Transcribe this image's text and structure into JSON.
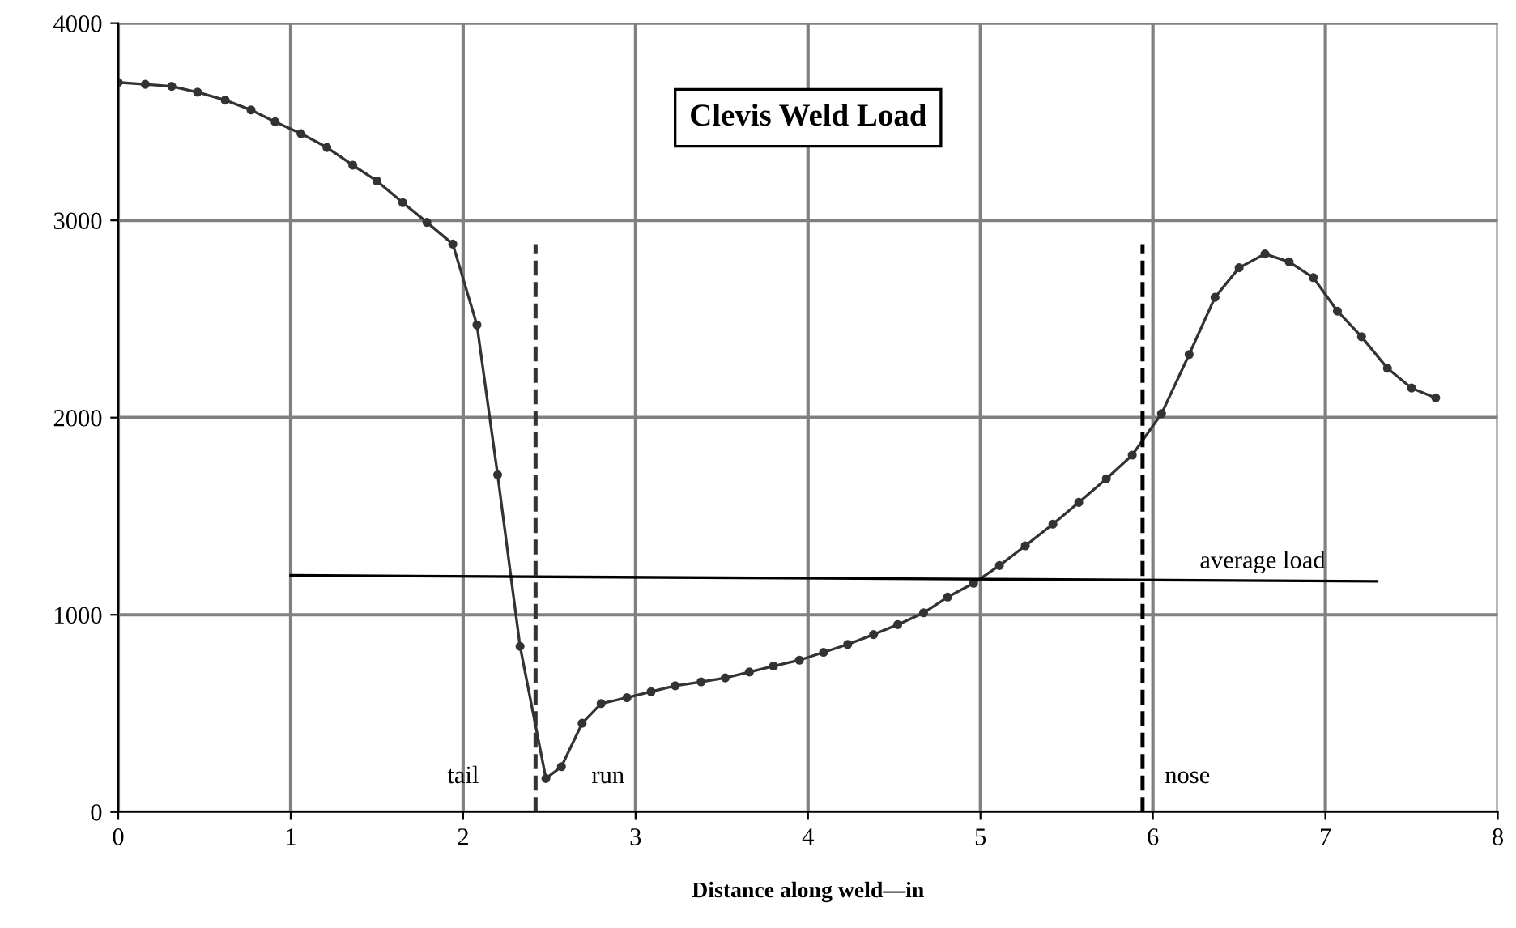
{
  "chart_data": {
    "type": "line",
    "title": "Clevis Weld Load",
    "xlabel": "Distance along weld—in",
    "xlim": [
      0,
      8
    ],
    "xticks": [
      0,
      1,
      2,
      3,
      4,
      5,
      6,
      7,
      8
    ],
    "ylim": [
      0,
      4000
    ],
    "yticks": [
      0,
      1000,
      2000,
      3000,
      4000
    ],
    "grid": true,
    "legend": false,
    "marker": "circle",
    "line_style": "solid",
    "series": [
      {
        "color": "#333333",
        "x": [
          0,
          0.157,
          0.31,
          0.46,
          0.62,
          0.77,
          0.91,
          1.06,
          1.21,
          1.36,
          1.5,
          1.65,
          1.79,
          1.94,
          2.08,
          2.2,
          2.33,
          2.48,
          2.57,
          2.69,
          2.8,
          2.95,
          3.09,
          3.23,
          3.38,
          3.52,
          3.66,
          3.8,
          3.95,
          4.09,
          4.23,
          4.38,
          4.52,
          4.67,
          4.81,
          4.96,
          5.11,
          5.26,
          5.42,
          5.57,
          5.73,
          5.88,
          6.05,
          6.21,
          6.36,
          6.5,
          6.65,
          6.79,
          6.93,
          7.07,
          7.21,
          7.36,
          7.5,
          7.64
        ],
        "values": [
          3700,
          3690,
          3680,
          3650,
          3610,
          3560,
          3500,
          3440,
          3370,
          3280,
          3200,
          3090,
          2990,
          2880,
          2470,
          1710,
          840,
          170,
          230,
          450,
          550,
          580,
          610,
          640,
          660,
          680,
          710,
          740,
          770,
          810,
          850,
          900,
          950,
          1010,
          1090,
          1160,
          1250,
          1350,
          1460,
          1570,
          1690,
          1810,
          2020,
          2320,
          2610,
          2760,
          2830,
          2790,
          2710,
          2540,
          2410,
          2250,
          2150,
          2100
        ]
      },
      {
        "name": "average load",
        "type": "line",
        "marker": "none",
        "color": "#000000",
        "x": [
          1,
          7.3
        ],
        "values": [
          1200,
          1170
        ]
      }
    ],
    "ref_lines": [
      {
        "axis": "x",
        "value": 2.42,
        "color": "#333333",
        "line_style": "dashed"
      },
      {
        "axis": "x",
        "value": 5.94,
        "color": "#000000",
        "line_style": "dashed"
      }
    ],
    "annotations": [
      "tail",
      "run",
      "nose"
    ]
  }
}
